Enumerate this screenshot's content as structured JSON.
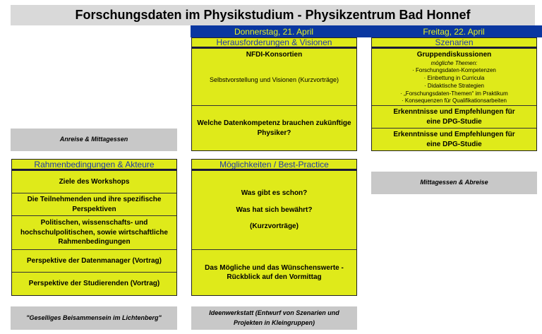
{
  "title": "Forschungsdaten im Physikstudium - Physikzentrum Bad Honnef",
  "days": {
    "thursday": "Donnerstag, 21. April",
    "friday": "Freitag, 22. April"
  },
  "thursday_morning": {
    "header": "Herausforderungen & Visionen",
    "block1_title": "NFDI-Konsortien",
    "block1_text": "Selbstvorstellung und Visionen (Kurzvorträge)",
    "block2": "Welche Datenkompetenz brauchen zukünftige Physiker?"
  },
  "friday_morning": {
    "header": "Szenarien",
    "block1_title": "Gruppendiskussionen",
    "block1_subtitle": "mögliche Themen:",
    "topics": [
      "· Forschungsdaten-Kompetenzen",
      "· Einbettung in Curricula",
      "· Didaktische Strategien",
      "· „Forschungsdaten-Themen“ im Praktikum",
      "·  Konsequenzen für Qualifikationsarbeiten"
    ],
    "block2": "Erkenntnisse und Empfehlungen für eine DPG-Studie",
    "block3": "Erkenntnisse und Empfehlungen für eine DPG-Studie"
  },
  "arrival": "Anreise & Mittagessen",
  "wednesday": {
    "header": "Rahmenbedingungen & Akteure",
    "items": [
      "Ziele des Workshops",
      "Die Teilnehmenden und ihre spezifische Perspektiven",
      "Politischen, wissenschafts- und hochschulpolitischen, sowie wirtschaftliche Rahmenbedingungen",
      "Perspektive der Datenmanager (Vortrag)",
      "Perspektive der Studierenden (Vortrag)"
    ]
  },
  "thursday_afternoon": {
    "header": "Möglichkeiten / Best-Practice",
    "line1": "Was gibt es schon?",
    "line2": "Was hat sich bewährt?",
    "line3": "(Kurzvorträge)",
    "block2": "Das Mögliche und das Wünschenswerte - Rückblick auf den Vormittag"
  },
  "friday_lunch": "Mittagessen & Abreise",
  "evening1": "\"Geselliges Beisammensein im Lichtenberg\"",
  "evening2": "Ideenwerkstatt (Entwurf von Szenarien und Projekten in Kleingruppen)"
}
